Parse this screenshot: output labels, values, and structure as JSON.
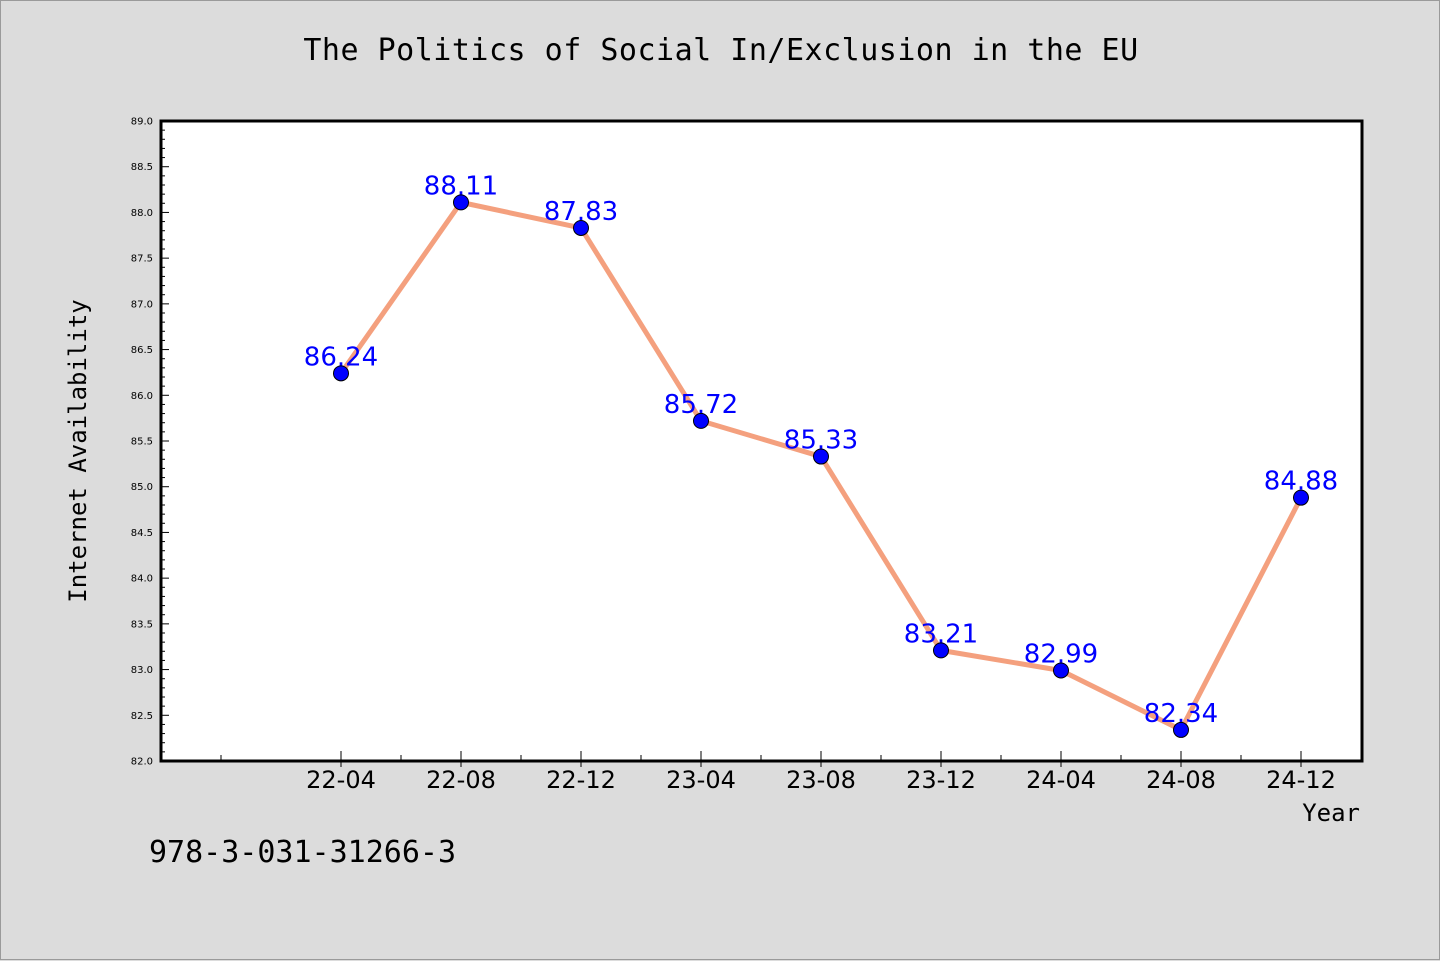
{
  "chart_data": {
    "type": "line",
    "title": "The Politics of Social In/Exclusion in the EU",
    "xlabel": "Year",
    "ylabel": "Internet Availability",
    "categories": [
      "22-04",
      "22-08",
      "22-12",
      "23-04",
      "23-08",
      "23-12",
      "24-04",
      "24-08",
      "24-12"
    ],
    "values": [
      86.24,
      88.11,
      87.83,
      85.72,
      85.33,
      83.21,
      82.99,
      82.34,
      84.88
    ],
    "data_labels": [
      "86.24",
      "88.11",
      "87.83",
      "85.72",
      "85.33",
      "83.21",
      "82.99",
      "82.34",
      "84.88"
    ],
    "ylim": [
      82.0,
      89.0
    ],
    "yticks": [
      "82.0",
      "82.5",
      "83.0",
      "83.5",
      "84.0",
      "84.5",
      "85.0",
      "85.5",
      "86.0",
      "86.5",
      "87.0",
      "87.5",
      "88.0",
      "88.5",
      "89.0"
    ],
    "grid": false,
    "colors": {
      "line": "#f4a07e",
      "marker": "#0000ff",
      "label": "#0000ff"
    }
  },
  "footer": {
    "isbn": "978-3-031-31266-3"
  }
}
